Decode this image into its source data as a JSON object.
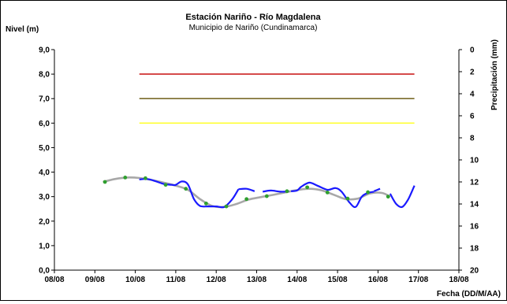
{
  "chart_data": {
    "type": "line",
    "title": "Estación Nariño - Río Magdalena",
    "subtitle": "Municipio de Nariño (Cundinamarca)",
    "ylabel": "Nivel (m)",
    "y2label": "Precipitación (mm)",
    "xlabel": "Fecha (DD/M/AA)",
    "ylim": [
      0,
      9
    ],
    "y2lim": [
      20,
      0
    ],
    "xlim": [
      0,
      10
    ],
    "x_tick_labels": [
      "08/08",
      "09/08",
      "10/08",
      "11/08",
      "12/08",
      "13/08",
      "14/08",
      "15/08",
      "16/08",
      "17/08",
      "18/08"
    ],
    "y_tick_labels": [
      "0,0",
      "1,0",
      "2,0",
      "3,0",
      "4,0",
      "5,0",
      "6,0",
      "7,0",
      "8,0",
      "9,0"
    ],
    "y2_tick_labels": [
      "0",
      "2",
      "4",
      "6",
      "8",
      "10",
      "12",
      "14",
      "16",
      "18",
      "20"
    ],
    "grid": false,
    "thresholds": [
      {
        "y": 8.0,
        "x_start": 2.1,
        "x_end": 8.9,
        "color": "#cc2222"
      },
      {
        "y": 7.0,
        "x_start": 2.1,
        "x_end": 8.9,
        "color": "#7a6a2a"
      },
      {
        "y": 6.0,
        "x_start": 2.1,
        "x_end": 8.9,
        "color": "#ffff33"
      }
    ],
    "series": [
      {
        "color": "#a8a8a8",
        "style": "trend",
        "x": [
          1.2,
          1.5,
          1.8,
          2.1,
          2.4,
          2.7,
          3.0,
          3.3,
          3.6,
          3.9,
          4.2,
          4.5,
          4.8,
          5.1,
          5.4,
          5.7,
          6.0,
          6.3,
          6.6,
          6.9,
          7.2,
          7.5,
          7.8,
          8.1,
          8.3
        ],
        "y": [
          3.6,
          3.72,
          3.78,
          3.76,
          3.68,
          3.57,
          3.45,
          3.28,
          2.9,
          2.62,
          2.58,
          2.7,
          2.88,
          2.98,
          3.07,
          3.17,
          3.27,
          3.32,
          3.26,
          3.08,
          2.9,
          2.92,
          3.13,
          3.15,
          3.0
        ]
      },
      {
        "color": "#1a1aff",
        "style": "level",
        "segments": [
          {
            "x": [
              2.1,
              2.3,
              2.5,
              2.7,
              2.9,
              3.0,
              3.15,
              3.3,
              3.45,
              3.6,
              3.8,
              4.0,
              4.2,
              4.4,
              4.55
            ],
            "y": [
              3.7,
              3.72,
              3.63,
              3.52,
              3.48,
              3.48,
              3.62,
              3.5,
              2.9,
              2.62,
              2.6,
              2.6,
              2.58,
              2.9,
              3.3
            ]
          },
          {
            "x": [
              4.55,
              4.75,
              4.95
            ],
            "y": [
              3.3,
              3.32,
              3.22
            ]
          },
          {
            "x": [
              5.15,
              5.35,
              5.6,
              5.8
            ],
            "y": [
              3.2,
              3.25,
              3.2,
              3.22
            ]
          },
          {
            "x": [
              5.85,
              6.0,
              6.1,
              6.3,
              6.5,
              6.75,
              6.95,
              7.1,
              7.3,
              7.45,
              7.6,
              7.75,
              7.9
            ],
            "y": [
              3.22,
              3.25,
              3.4,
              3.57,
              3.45,
              3.28,
              3.35,
              3.2,
              2.75,
              2.58,
              3.0,
              3.15,
              3.2
            ]
          },
          {
            "x": [
              7.9,
              8.05
            ],
            "y": [
              3.22,
              3.32
            ]
          },
          {
            "x": [
              8.3,
              8.45,
              8.6,
              8.75,
              8.9
            ],
            "y": [
              3.12,
              2.7,
              2.58,
              2.9,
              3.45
            ]
          }
        ]
      },
      {
        "color": "#2f9f2f",
        "style": "markers",
        "x": [
          1.25,
          1.75,
          2.25,
          2.75,
          3.25,
          3.75,
          4.25,
          4.75,
          5.25,
          5.75,
          6.25,
          6.75,
          7.25,
          7.75,
          8.25
        ],
        "y": [
          3.6,
          3.78,
          3.75,
          3.48,
          3.32,
          2.72,
          2.6,
          2.9,
          3.02,
          3.22,
          3.38,
          3.17,
          2.92,
          3.18,
          3.0
        ]
      }
    ]
  }
}
